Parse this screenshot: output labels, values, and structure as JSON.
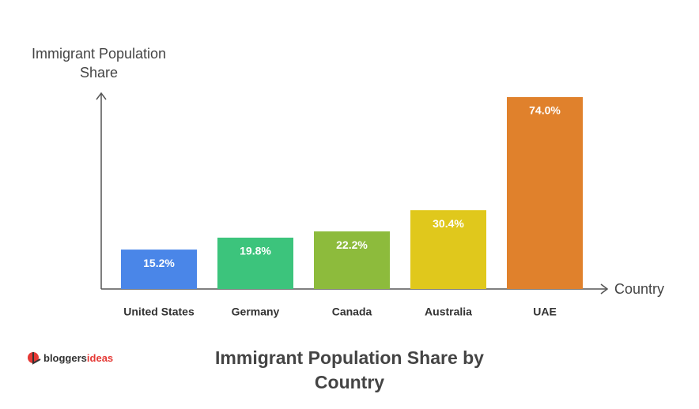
{
  "chart_data": {
    "type": "bar",
    "title": "Immigrant Population Share by Country",
    "y_label": "Immigrant Population Share",
    "x_label": "Country",
    "categories": [
      "United States",
      "Germany",
      "Canada",
      "Australia",
      "UAE"
    ],
    "values": [
      15.2,
      19.8,
      22.2,
      30.4,
      74.0
    ],
    "value_labels": [
      "15.2%",
      "19.8%",
      "22.2%",
      "30.4%",
      "74.0%"
    ],
    "colors": [
      "#4a86e8",
      "#3cc47c",
      "#8dbb3c",
      "#e0c81c",
      "#e0812c"
    ]
  },
  "logo": [
    "bloggers",
    "ideas"
  ]
}
